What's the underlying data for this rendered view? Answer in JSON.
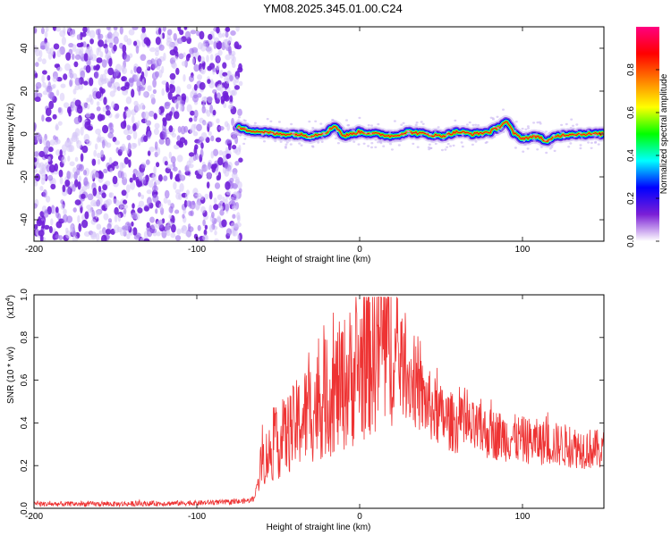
{
  "title": "YM08.2025.345.01.00.C24",
  "chart_data": [
    {
      "type": "heatmap",
      "xlabel": "Height of straight line (km)",
      "ylabel": "Frequency (Hz)",
      "xlim": [
        -200,
        150
      ],
      "ylim": [
        -50,
        50
      ],
      "xticks": [
        -200,
        -100,
        0,
        100
      ],
      "yticks": [
        -40,
        -20,
        0,
        20,
        40
      ],
      "colorbar": {
        "label": "Normalized spectral amplitude",
        "range": [
          0,
          1
        ],
        "ticks": [
          "0.0",
          "0.2",
          "0.4",
          "0.6",
          "0.8"
        ],
        "colors": [
          "#ffffff",
          "#7b1fd6",
          "#0000ff",
          "#00ffff",
          "#00ff00",
          "#ffff00",
          "#ff8000",
          "#ff0000",
          "#ff0080"
        ]
      },
      "noise_region": {
        "x": [
          -200,
          -73
        ],
        "f": [
          -50,
          50
        ],
        "level": 0.1
      },
      "ridge": {
        "x": [
          -75,
          -70,
          -60,
          -50,
          -40,
          -30,
          -20,
          -15,
          -10,
          0,
          10,
          20,
          30,
          40,
          50,
          60,
          70,
          80,
          85,
          90,
          95,
          100,
          110,
          115,
          120,
          130,
          140,
          150
        ],
        "f": [
          3,
          2,
          1,
          0,
          0,
          -1,
          1,
          4,
          -1,
          1,
          0,
          -1,
          1,
          0,
          -1,
          1,
          0,
          1,
          3,
          6,
          0,
          -2,
          -1,
          -4,
          -1,
          0,
          0,
          0
        ]
      }
    },
    {
      "type": "line",
      "xlabel": "Height of straight line (km)",
      "ylabel": "SNR (10 * v/v)",
      "y_multiplier": "(x10",
      "y_multiplier_exp": "4",
      "xlim": [
        -200,
        150
      ],
      "ylim": [
        0,
        1.0
      ],
      "xticks": [
        -200,
        -100,
        0,
        100
      ],
      "yticks": [
        "0.0",
        "0.2",
        "0.4",
        "0.6",
        "0.8",
        "1.0"
      ],
      "color": "#ee3333",
      "envelope": {
        "x": [
          -200,
          -150,
          -100,
          -75,
          -65,
          -60,
          -50,
          -40,
          -30,
          -20,
          -10,
          0,
          5,
          10,
          12,
          15,
          20,
          30,
          40,
          50,
          60,
          80,
          100,
          120,
          150
        ],
        "y": [
          0.02,
          0.02,
          0.025,
          0.03,
          0.04,
          0.22,
          0.3,
          0.38,
          0.46,
          0.52,
          0.58,
          0.66,
          0.72,
          0.76,
          0.78,
          0.78,
          0.72,
          0.62,
          0.5,
          0.43,
          0.39,
          0.35,
          0.32,
          0.3,
          0.27
        ]
      }
    }
  ]
}
